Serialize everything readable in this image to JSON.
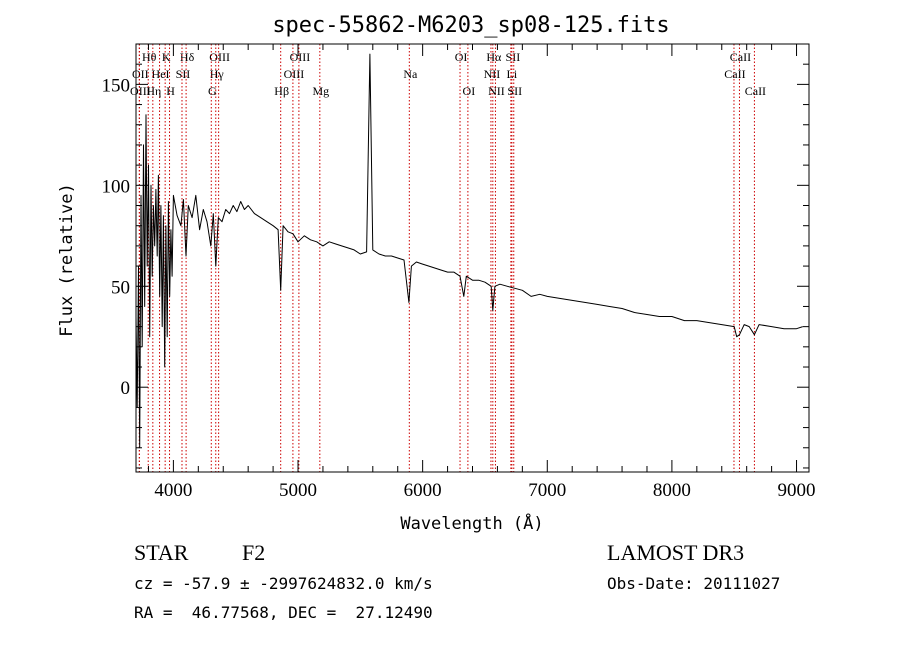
{
  "chart_data": {
    "type": "line",
    "title": "spec-55862-M6203_sp08-125.fits",
    "xlabel": "Wavelength (Å)",
    "ylabel": "Flux (relative)",
    "xlim": [
      3700,
      9100
    ],
    "ylim": [
      -42,
      170
    ],
    "xticks": [
      4000,
      5000,
      6000,
      7000,
      8000,
      9000
    ],
    "xtick_labels": [
      "4000",
      "5000",
      "6000",
      "7000",
      "8000",
      "9000"
    ],
    "yticks": [
      0,
      50,
      100,
      150
    ],
    "ytick_labels": [
      "0",
      "50",
      "100",
      "150"
    ],
    "grid": false,
    "series": [
      {
        "name": "spectrum",
        "color": "#000000",
        "x": [
          3700,
          3710,
          3720,
          3730,
          3740,
          3750,
          3760,
          3770,
          3780,
          3790,
          3800,
          3810,
          3820,
          3830,
          3840,
          3850,
          3860,
          3870,
          3880,
          3890,
          3900,
          3910,
          3920,
          3930,
          3940,
          3950,
          3960,
          3970,
          3980,
          3990,
          4000,
          4030,
          4060,
          4080,
          4101,
          4120,
          4150,
          4180,
          4210,
          4240,
          4270,
          4300,
          4320,
          4340,
          4360,
          4390,
          4420,
          4450,
          4480,
          4510,
          4540,
          4570,
          4600,
          4650,
          4700,
          4750,
          4800,
          4840,
          4861,
          4880,
          4920,
          4960,
          5000,
          5050,
          5100,
          5150,
          5200,
          5250,
          5300,
          5350,
          5400,
          5450,
          5500,
          5550,
          5577,
          5600,
          5650,
          5700,
          5750,
          5800,
          5850,
          5890,
          5910,
          5950,
          6000,
          6050,
          6100,
          6150,
          6200,
          6250,
          6300,
          6330,
          6350,
          6400,
          6450,
          6500,
          6550,
          6563,
          6580,
          6620,
          6680,
          6740,
          6800,
          6870,
          6940,
          7000,
          7100,
          7200,
          7300,
          7400,
          7500,
          7600,
          7700,
          7800,
          7900,
          8000,
          8100,
          8200,
          8300,
          8400,
          8500,
          8520,
          8542,
          8580,
          8620,
          8662,
          8700,
          8800,
          8900,
          9000,
          9050
        ],
        "y": [
          35,
          -10,
          60,
          -30,
          95,
          20,
          120,
          40,
          135,
          60,
          110,
          25,
          100,
          55,
          90,
          70,
          98,
          65,
          105,
          45,
          90,
          30,
          85,
          10,
          80,
          25,
          92,
          45,
          78,
          55,
          95,
          85,
          80,
          93,
          65,
          90,
          84,
          95,
          78,
          88,
          82,
          70,
          86,
          60,
          84,
          82,
          88,
          86,
          90,
          87,
          92,
          88,
          90,
          86,
          84,
          82,
          80,
          78,
          48,
          80,
          77,
          76,
          72,
          75,
          73,
          72,
          70,
          72,
          71,
          70,
          69,
          68,
          66,
          67,
          165,
          68,
          66,
          65,
          65,
          64,
          63,
          42,
          60,
          62,
          61,
          60,
          59,
          58,
          57,
          57,
          55,
          45,
          55,
          53,
          53,
          52,
          50,
          38,
          50,
          51,
          50,
          49,
          48,
          45,
          46,
          45,
          44,
          43,
          42,
          41,
          40,
          39,
          37,
          36,
          35,
          35,
          33,
          33,
          32,
          31,
          30,
          25,
          26,
          31,
          30,
          26,
          31,
          30,
          29,
          29,
          30
        ]
      }
    ],
    "line_markers": [
      {
        "label": "Hθ",
        "wavelength": 3798,
        "row": 1
      },
      {
        "label": "OII",
        "wavelength": 3727,
        "row": 2
      },
      {
        "label": "OIII",
        "wavelength": 3727,
        "row": 3
      },
      {
        "label": "K",
        "wavelength": 3934,
        "row": 1
      },
      {
        "label": "HeI",
        "wavelength": 3889,
        "row": 2
      },
      {
        "label": "Hη",
        "wavelength": 3835,
        "row": 3
      },
      {
        "label": "Hδ",
        "wavelength": 4102,
        "row": 1
      },
      {
        "label": "SII",
        "wavelength": 4069,
        "row": 2
      },
      {
        "label": "H",
        "wavelength": 3969,
        "row": 3
      },
      {
        "label": "OIII",
        "wavelength": 4363,
        "row": 1
      },
      {
        "label": "Hγ",
        "wavelength": 4340,
        "row": 2
      },
      {
        "label": "G",
        "wavelength": 4304,
        "row": 3
      },
      {
        "label": "OIII",
        "wavelength": 5007,
        "row": 1
      },
      {
        "label": "OIII",
        "wavelength": 4959,
        "row": 2
      },
      {
        "label": "Hβ",
        "wavelength": 4861,
        "row": 3
      },
      {
        "label": "Mg",
        "wavelength": 5175,
        "row": 3
      },
      {
        "label": "Na",
        "wavelength": 5893,
        "row": 2
      },
      {
        "label": "OI",
        "wavelength": 6300,
        "row": 1
      },
      {
        "label": "OI",
        "wavelength": 6363,
        "row": 3
      },
      {
        "label": "Hα",
        "wavelength": 6563,
        "row": 1
      },
      {
        "label": "SII",
        "wavelength": 6716,
        "row": 1
      },
      {
        "label": "NII",
        "wavelength": 6548,
        "row": 2
      },
      {
        "label": "Li",
        "wavelength": 6708,
        "row": 2
      },
      {
        "label": "NII",
        "wavelength": 6584,
        "row": 3
      },
      {
        "label": "SII",
        "wavelength": 6731,
        "row": 3
      },
      {
        "label": "CaII",
        "wavelength": 8542,
        "row": 1
      },
      {
        "label": "CaII",
        "wavelength": 8498,
        "row": 2
      },
      {
        "label": "CaII",
        "wavelength": 8662,
        "row": 3
      }
    ],
    "marker_color": "#cc0000"
  },
  "info": {
    "object_class": "STAR",
    "subclass": "F2",
    "survey": "LAMOST DR3",
    "cz": "cz = -57.9 ± -2997624832.0 km/s",
    "obs_date": "Obs-Date: 20111027",
    "coords": "RA =  46.77568, DEC =  27.12490"
  }
}
